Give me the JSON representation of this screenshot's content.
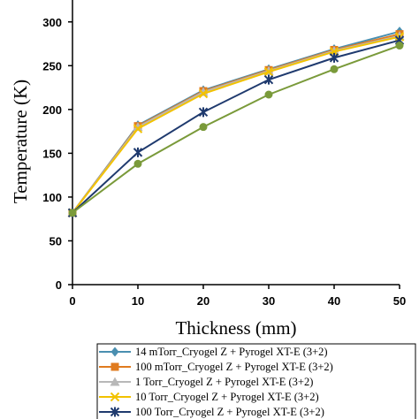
{
  "chart_data": {
    "type": "line",
    "xlabel": "Thickness (mm)",
    "ylabel": "Temperature (K)",
    "xlim": [
      0,
      50
    ],
    "ylim": [
      0,
      325
    ],
    "x_ticks": [
      "0",
      "10",
      "20",
      "30",
      "40",
      "50"
    ],
    "y_ticks": [
      "0",
      "50",
      "100",
      "150",
      "200",
      "250",
      "300"
    ],
    "x": [
      0,
      10,
      20,
      30,
      40,
      50
    ],
    "grid": false,
    "legend_position": "bottom",
    "series": [
      {
        "name": "14 mTorr_Cryogel Z + Pyrogel XT-E (3+2)",
        "values": [
          82,
          182,
          222,
          246,
          269,
          289
        ],
        "color": "#4a8fb0",
        "marker": "diamond"
      },
      {
        "name": "100 mTorr_Cryogel Z + Pyrogel XT-E (3+2)",
        "values": [
          82,
          181,
          221,
          245,
          268,
          286
        ],
        "color": "#e07b1f",
        "marker": "square"
      },
      {
        "name": "1 Torr_Cryogel Z + Pyrogel XT-E (3+2)",
        "values": [
          82,
          180,
          220,
          244,
          267,
          284
        ],
        "color": "#b8b8b8",
        "marker": "triangle"
      },
      {
        "name": "10 Torr_Cryogel Z + Pyrogel XT-E (3+2)",
        "values": [
          82,
          178,
          218,
          243,
          266,
          283
        ],
        "color": "#f2c200",
        "marker": "x"
      },
      {
        "name": "100 Torr_Cryogel Z + Pyrogel XT-E (3+2)",
        "values": [
          82,
          151,
          197,
          234,
          259,
          279
        ],
        "color": "#1f3a6e",
        "marker": "star"
      },
      {
        "name": "",
        "values": [
          82,
          138,
          180,
          217,
          246,
          273
        ],
        "color": "#7a9a3a",
        "marker": "circle"
      }
    ]
  }
}
